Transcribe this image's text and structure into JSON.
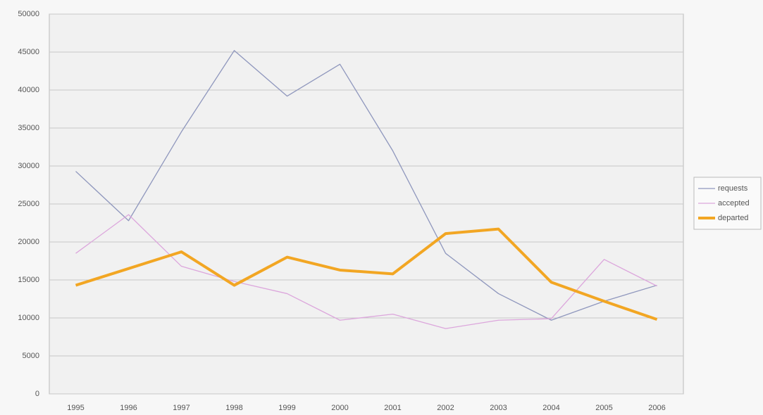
{
  "chart_data": {
    "type": "line",
    "categories": [
      "1995",
      "1996",
      "1997",
      "1998",
      "1999",
      "2000",
      "2001",
      "2002",
      "2003",
      "2004",
      "2005",
      "2006"
    ],
    "series": [
      {
        "name": "requests",
        "color": "#8f97bd",
        "width": 1.3,
        "values": [
          29300,
          22800,
          34500,
          45200,
          39200,
          43400,
          32000,
          18500,
          13200,
          9700,
          12200,
          14300
        ]
      },
      {
        "name": "accepted",
        "color": "#dca6dc",
        "width": 1.3,
        "values": [
          18500,
          23600,
          16800,
          14800,
          13200,
          9700,
          10500,
          8600,
          9700,
          9900,
          17700,
          14200
        ]
      },
      {
        "name": "departed",
        "color": "#f2a623",
        "width": 4,
        "values": [
          14300,
          16500,
          18700,
          14300,
          18000,
          16300,
          15800,
          21100,
          21700,
          14700,
          12200,
          9800
        ]
      }
    ],
    "ylim": [
      0,
      50000
    ],
    "yticks": [
      0,
      5000,
      10000,
      15000,
      20000,
      25000,
      30000,
      35000,
      40000,
      45000,
      50000
    ],
    "grid": true,
    "legend": "right"
  }
}
